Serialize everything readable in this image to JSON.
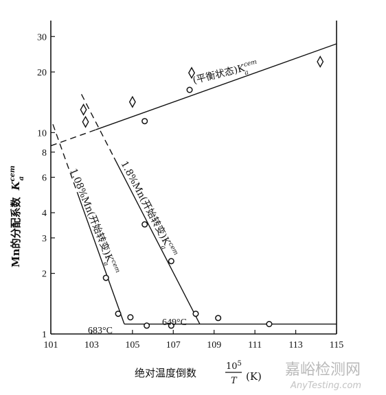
{
  "chart_data": {
    "type": "scatter",
    "x_axis": {
      "label": "绝对温度倒数",
      "fraction_numerator": "10",
      "fraction_exponent": "5",
      "fraction_denominator": "T",
      "unit": "(K)",
      "range": [
        101,
        115
      ],
      "ticks": [
        101,
        103,
        105,
        107,
        109,
        111,
        113,
        115
      ]
    },
    "y_axis": {
      "label_text": "Mn的分配系数",
      "label_symbol": "K",
      "label_sup": "cem",
      "label_sub": "a",
      "scale": "log",
      "range": [
        1,
        36
      ],
      "ticks": [
        1,
        2,
        3,
        4,
        6,
        8,
        10,
        20,
        30
      ]
    },
    "series": [
      {
        "name": "(平衡状态)K",
        "name_sup": "cem",
        "name_sub": "a",
        "marker": "diamond",
        "points": [
          [
            102.6,
            13.0
          ],
          [
            102.7,
            11.3
          ],
          [
            105.0,
            14.2
          ],
          [
            107.9,
            19.8
          ],
          [
            114.2,
            22.5
          ]
        ],
        "fit_line": {
          "x_start": 101,
          "x_end": 115,
          "y_start": 8.6,
          "y_end": 27.6,
          "dashed_until_x": 103.2
        }
      },
      {
        "name": "1.08%Mn(开始转变)K",
        "name_sup": "cem",
        "name_sub": "a",
        "marker": "circle",
        "points": [
          [
            103.7,
            1.9
          ],
          [
            104.3,
            1.26
          ],
          [
            104.9,
            1.21
          ],
          [
            105.7,
            1.1
          ],
          [
            106.9,
            1.1
          ]
        ],
        "fit_line": {
          "x_start": 101.1,
          "y_start": 11.0,
          "x_bend": 104.6,
          "y_bend": 1.12,
          "x_end": 115,
          "y_end": 1.12,
          "dashed_until_x": 102.3
        }
      },
      {
        "name": "1.8%Mn(开始转变)K",
        "name_sup": "cem",
        "name_sub": "a",
        "marker": "circle",
        "points": [
          [
            105.6,
            3.5
          ],
          [
            106.9,
            2.3
          ],
          [
            108.1,
            1.26
          ],
          [
            109.2,
            1.2
          ],
          [
            111.7,
            1.12
          ]
        ],
        "fit_line": {
          "x_start": 102.5,
          "y_start": 15.5,
          "x_end": 108.3,
          "y_end": 1.12,
          "dashed_until_x": 104.1
        }
      },
      {
        "name": "",
        "marker": "circle",
        "points": [
          [
            105.6,
            11.4
          ],
          [
            107.8,
            16.3
          ]
        ]
      }
    ],
    "annotations": [
      {
        "text": "683°C",
        "x": 102.6,
        "y": 1.18
      },
      {
        "text": "649°C",
        "x": 106.5,
        "y": 1.26
      }
    ],
    "grid": false,
    "legend": "none"
  },
  "watermark": {
    "line1": "嘉峪检测网",
    "line2": "AnyTesting.com"
  }
}
